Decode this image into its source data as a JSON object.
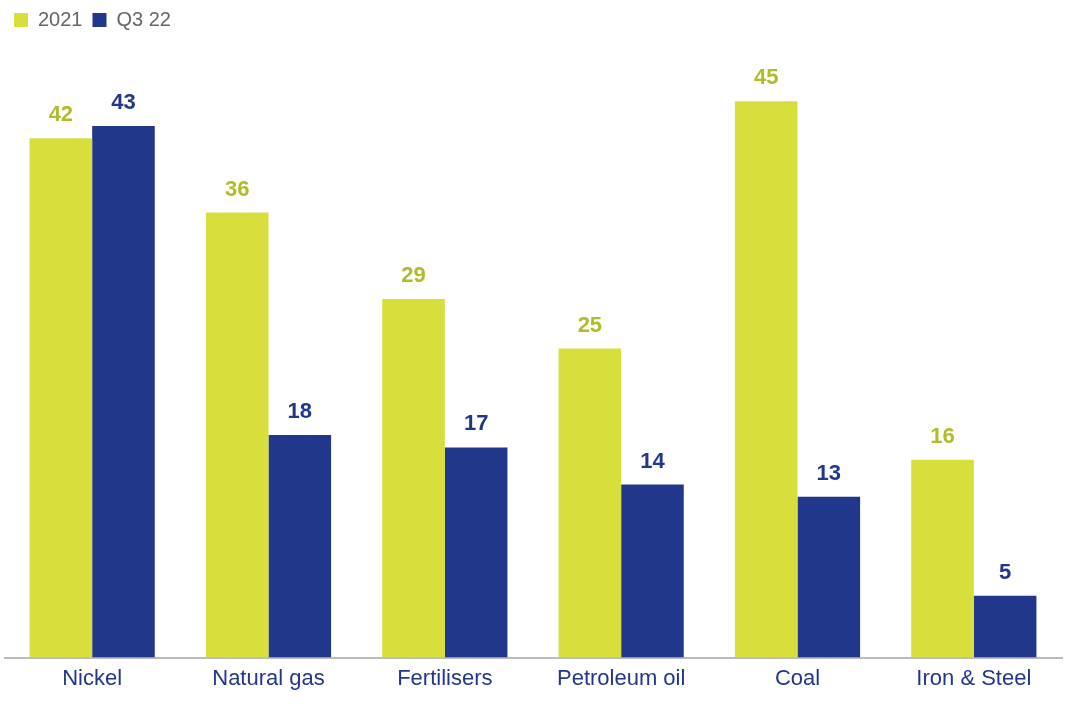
{
  "chart_data": {
    "type": "bar",
    "categories": [
      "Nickel",
      "Natural gas",
      "Fertilisers",
      "Petroleum oil",
      "Coal",
      "Iron & Steel"
    ],
    "series": [
      {
        "name": "2021",
        "color": "#d8df3d",
        "values": [
          42,
          36,
          29,
          25,
          45,
          16
        ]
      },
      {
        "name": "Q3 22",
        "color": "#21378c",
        "values": [
          43,
          18,
          17,
          14,
          13,
          5
        ]
      }
    ],
    "data_labels": true,
    "legend": "top left",
    "grid": false
  }
}
